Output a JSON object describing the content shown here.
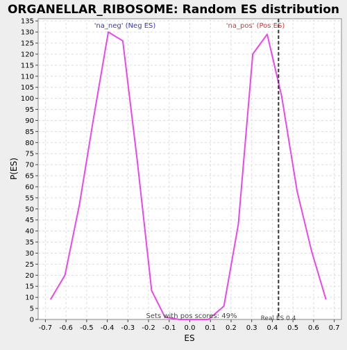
{
  "chart_data": {
    "type": "line",
    "title": "ORGANELLAR_RIBOSOME: Random ES distribution",
    "xlabel": "ES",
    "ylabel": "P(ES)",
    "xlim": [
      -0.735,
      0.735
    ],
    "ylim": [
      0,
      136
    ],
    "x_ticks": [
      -0.7,
      -0.6,
      -0.5,
      -0.4,
      -0.3,
      -0.2,
      -0.1,
      0.0,
      0.1,
      0.2,
      0.3,
      0.4,
      0.5,
      0.6,
      0.7
    ],
    "x_tick_labels": [
      "-0.7",
      "-0.6",
      "-0.5",
      "-0.4",
      "-0.3",
      "-0.2",
      "-0.1",
      "0.0",
      "0.1",
      "0.2",
      "0.3",
      "0.4",
      "0.5",
      "0.6",
      "0.7"
    ],
    "y_ticks": [
      0,
      5,
      10,
      15,
      20,
      25,
      30,
      35,
      40,
      45,
      50,
      55,
      60,
      65,
      70,
      75,
      80,
      85,
      90,
      95,
      100,
      105,
      110,
      115,
      120,
      125,
      130,
      135
    ],
    "grid": true,
    "series": [
      {
        "name": "distribution",
        "color": "#ee44ee",
        "x": [
          -0.675,
          -0.605,
          -0.535,
          -0.465,
          -0.395,
          -0.325,
          -0.255,
          -0.185,
          -0.12,
          -0.05,
          0.02,
          0.09,
          0.165,
          0.235,
          0.305,
          0.375,
          0.445,
          0.52,
          0.59,
          0.66
        ],
        "y": [
          9,
          20,
          52,
          92,
          130,
          126,
          72,
          13,
          1,
          0,
          0,
          0,
          6,
          43,
          120,
          129,
          101,
          58,
          31,
          9
        ]
      }
    ],
    "annotations": {
      "neg_label": "'na_neg' (Neg ES)",
      "neg_color": "#3333cc",
      "pos_label": "'na_pos' (Pos ES)",
      "pos_color": "#dd3333",
      "bottom_note": "Sets with pos scores: 49%",
      "real_es_label": "Real ES 0.4",
      "real_es_value": 0.43,
      "marker_color": "#333333"
    }
  }
}
